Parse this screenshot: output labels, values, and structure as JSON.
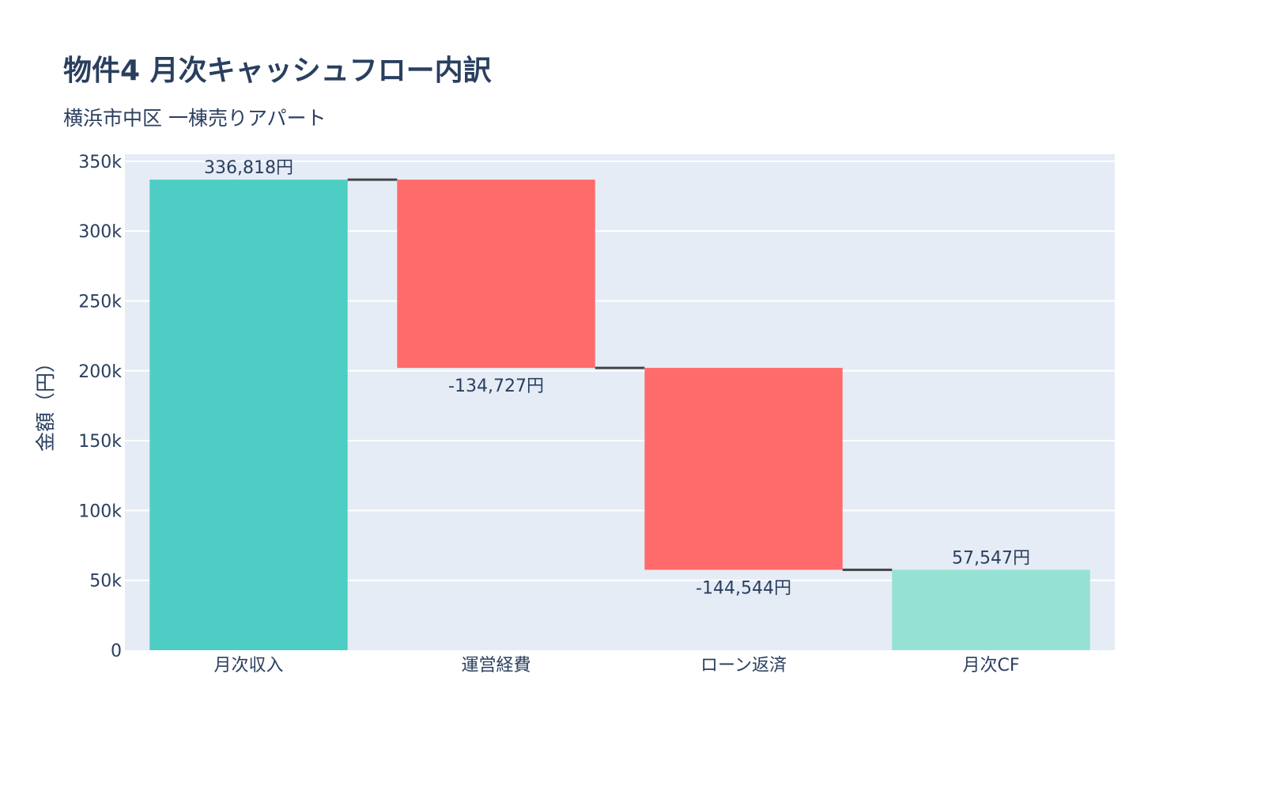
{
  "chart_data": {
    "type": "waterfall",
    "title": "物件4 月次キャッシュフロー内訳",
    "subtitle": "横浜市中区 一棟売りアパート",
    "xlabel": "",
    "ylabel": "金額（円）",
    "ylim": [
      0,
      355000
    ],
    "yticks": [
      0,
      50000,
      100000,
      150000,
      200000,
      250000,
      300000,
      350000
    ],
    "ytick_labels": [
      "0",
      "50k",
      "100k",
      "150k",
      "200k",
      "250k",
      "300k",
      "350k"
    ],
    "grid": true,
    "categories": [
      "月次収入",
      "運営経費",
      "ローン返済",
      "月次CF"
    ],
    "measures": [
      "absolute",
      "relative",
      "relative",
      "total"
    ],
    "values": [
      336818,
      -134727,
      -144544,
      57547
    ],
    "data_labels": [
      "336,818円",
      "-134,727円",
      "-144,544円",
      "57,547円"
    ],
    "colors": {
      "increasing": "#4ECDC4",
      "decreasing": "#FF6B6B",
      "total": "#95E1D3",
      "connector": "#444444",
      "plot_bg": "#E5ECF6",
      "grid": "#FFFFFF"
    }
  }
}
